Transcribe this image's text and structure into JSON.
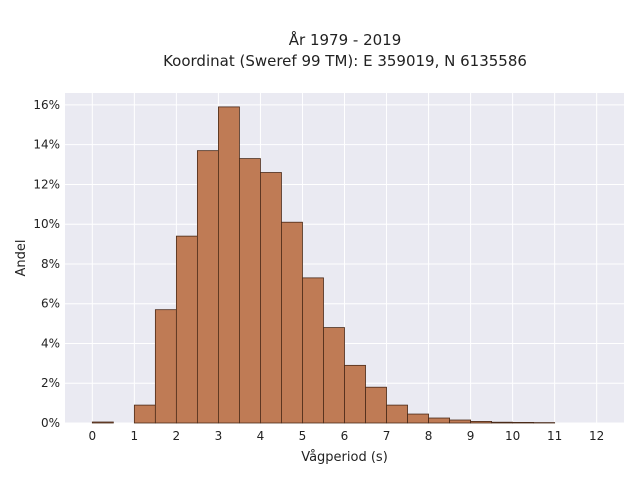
{
  "chart_data": {
    "type": "bar",
    "title": "År 1979 - 2019",
    "subtitle": "Koordinat (Sweref 99 TM): E 359019, N 6135586",
    "xlabel": "Vågperiod (s)",
    "ylabel": "Andel",
    "xlim": [
      -0.65,
      12.65
    ],
    "ylim": [
      0,
      0.166
    ],
    "x_ticks": [
      "0",
      "1",
      "2",
      "3",
      "4",
      "5",
      "6",
      "7",
      "8",
      "9",
      "10",
      "11",
      "12"
    ],
    "y_ticks": [
      {
        "value": 0,
        "label": "0%"
      },
      {
        "value": 0.02,
        "label": "2%"
      },
      {
        "value": 0.04,
        "label": "4%"
      },
      {
        "value": 0.06,
        "label": "6%"
      },
      {
        "value": 0.08,
        "label": "8%"
      },
      {
        "value": 0.1,
        "label": "10%"
      },
      {
        "value": 0.12,
        "label": "12%"
      },
      {
        "value": 0.14,
        "label": "14%"
      },
      {
        "value": 0.16,
        "label": "16%"
      }
    ],
    "bin_width": 0.5,
    "bins": [
      {
        "x0": 0.0,
        "value": 0.0005
      },
      {
        "x0": 0.5,
        "value": 0.0
      },
      {
        "x0": 1.0,
        "value": 0.009
      },
      {
        "x0": 1.5,
        "value": 0.057
      },
      {
        "x0": 2.0,
        "value": 0.094
      },
      {
        "x0": 2.5,
        "value": 0.137
      },
      {
        "x0": 3.0,
        "value": 0.159
      },
      {
        "x0": 3.5,
        "value": 0.133
      },
      {
        "x0": 4.0,
        "value": 0.126
      },
      {
        "x0": 4.5,
        "value": 0.101
      },
      {
        "x0": 5.0,
        "value": 0.073
      },
      {
        "x0": 5.5,
        "value": 0.048
      },
      {
        "x0": 6.0,
        "value": 0.029
      },
      {
        "x0": 6.5,
        "value": 0.018
      },
      {
        "x0": 7.0,
        "value": 0.009
      },
      {
        "x0": 7.5,
        "value": 0.0045
      },
      {
        "x0": 8.0,
        "value": 0.0025
      },
      {
        "x0": 8.5,
        "value": 0.0015
      },
      {
        "x0": 9.0,
        "value": 0.0008
      },
      {
        "x0": 9.5,
        "value": 0.0004
      },
      {
        "x0": 10.0,
        "value": 0.0003
      },
      {
        "x0": 10.5,
        "value": 0.0002
      }
    ],
    "grid": true,
    "colors": {
      "bar_fill": "#bf7b55",
      "bar_stroke": "#4a2a18",
      "plot_background": "#eaeaf2",
      "grid": "#ffffff"
    }
  }
}
